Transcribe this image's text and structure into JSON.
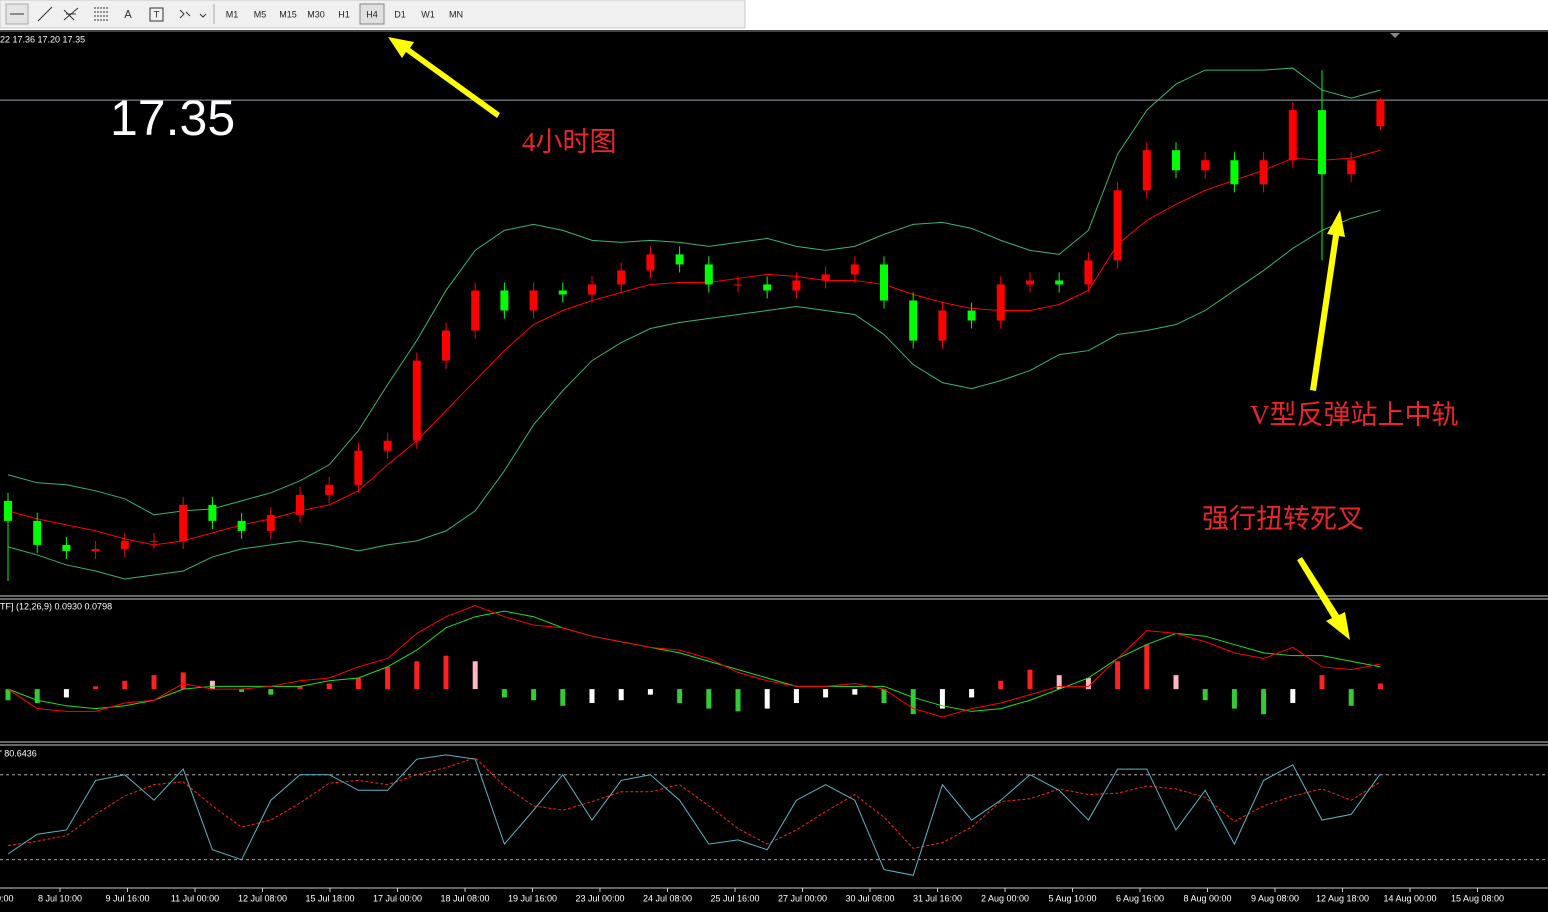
{
  "toolbar": {
    "timeframes": [
      "M1",
      "M5",
      "M15",
      "M30",
      "H1",
      "H4",
      "D1",
      "W1",
      "MN"
    ],
    "active": "H4"
  },
  "chart_data": {
    "type": "candlestick",
    "header": "22 17.36 17.20 17.35",
    "last_price": 17.35,
    "annotations": [
      "4小时图",
      "V型反弹站上中轨",
      "强行扭转死叉"
    ],
    "ylim": [
      14.88,
      17.69
    ],
    "up_color": "#ff0000",
    "down_color": "#00ff00",
    "open": [
      15.35,
      15.25,
      15.13,
      15.1,
      15.11,
      15.15,
      15.15,
      15.33,
      15.25,
      15.2,
      15.28,
      15.38,
      15.43,
      15.6,
      15.65,
      16.05,
      16.2,
      16.4,
      16.3,
      16.4,
      16.38,
      16.43,
      16.5,
      16.58,
      16.53,
      16.43,
      16.43,
      16.4,
      16.45,
      16.48,
      16.53,
      16.35,
      16.15,
      16.3,
      16.25,
      16.43,
      16.45,
      16.43,
      16.55,
      16.9,
      17.1,
      17.0,
      17.05,
      16.93,
      17.05,
      17.3,
      16.98,
      17.22
    ],
    "high": [
      15.39,
      15.29,
      15.17,
      15.15,
      15.19,
      15.19,
      15.37,
      15.37,
      15.29,
      15.32,
      15.42,
      15.47,
      15.64,
      15.69,
      16.09,
      16.24,
      16.44,
      16.44,
      16.44,
      16.44,
      16.47,
      16.54,
      16.62,
      16.62,
      16.57,
      16.47,
      16.47,
      16.49,
      16.52,
      16.57,
      16.57,
      16.39,
      16.34,
      16.34,
      16.47,
      16.49,
      16.49,
      16.59,
      16.94,
      17.14,
      17.14,
      17.09,
      17.09,
      17.09,
      17.34,
      17.5,
      17.09,
      17.36
    ],
    "low": [
      14.95,
      15.09,
      15.06,
      15.06,
      15.07,
      15.11,
      15.11,
      15.21,
      15.16,
      15.16,
      15.24,
      15.34,
      15.39,
      15.56,
      15.61,
      16.01,
      16.16,
      16.26,
      16.26,
      16.34,
      16.34,
      16.39,
      16.46,
      16.49,
      16.39,
      16.39,
      16.36,
      16.36,
      16.41,
      16.44,
      16.31,
      16.11,
      16.11,
      16.21,
      16.21,
      16.39,
      16.39,
      16.39,
      16.51,
      16.86,
      16.96,
      16.96,
      16.89,
      16.89,
      17.01,
      16.55,
      16.94,
      17.2
    ],
    "close": [
      15.25,
      15.13,
      15.1,
      15.11,
      15.15,
      15.15,
      15.33,
      15.25,
      15.2,
      15.28,
      15.38,
      15.43,
      15.6,
      15.65,
      16.05,
      16.2,
      16.4,
      16.3,
      16.4,
      16.38,
      16.43,
      16.5,
      16.58,
      16.53,
      16.43,
      16.43,
      16.4,
      16.45,
      16.48,
      16.53,
      16.35,
      16.15,
      16.3,
      16.25,
      16.43,
      16.45,
      16.43,
      16.55,
      16.9,
      17.1,
      17.0,
      17.05,
      16.93,
      17.05,
      17.3,
      16.98,
      17.05,
      17.35
    ],
    "bands": {
      "band_color": "#3cb371",
      "middle_color": "#ff0000",
      "upper": [
        15.48,
        15.44,
        15.43,
        15.4,
        15.36,
        15.28,
        15.3,
        15.31,
        15.35,
        15.39,
        15.45,
        15.53,
        15.7,
        15.93,
        16.15,
        16.4,
        16.6,
        16.7,
        16.73,
        16.7,
        16.65,
        16.64,
        16.65,
        16.64,
        16.62,
        16.64,
        16.66,
        16.62,
        16.6,
        16.62,
        16.68,
        16.73,
        16.74,
        16.71,
        16.65,
        16.6,
        16.58,
        16.7,
        17.08,
        17.3,
        17.43,
        17.5,
        17.5,
        17.5,
        17.51,
        17.4,
        17.36,
        17.4
      ],
      "middle": [
        15.3,
        15.26,
        15.23,
        15.2,
        15.16,
        15.13,
        15.15,
        15.19,
        15.23,
        15.26,
        15.3,
        15.33,
        15.4,
        15.53,
        15.65,
        15.8,
        15.95,
        16.1,
        16.23,
        16.3,
        16.35,
        16.39,
        16.43,
        16.44,
        16.44,
        16.46,
        16.48,
        16.47,
        16.45,
        16.45,
        16.43,
        16.38,
        16.34,
        16.31,
        16.3,
        16.3,
        16.33,
        16.4,
        16.63,
        16.75,
        16.83,
        16.9,
        16.95,
        17.0,
        17.06,
        17.05,
        17.06,
        17.1
      ],
      "lower": [
        15.12,
        15.08,
        15.03,
        15.0,
        14.96,
        14.98,
        15.0,
        15.07,
        15.11,
        15.13,
        15.15,
        15.13,
        15.1,
        15.13,
        15.15,
        15.2,
        15.3,
        15.5,
        15.73,
        15.9,
        16.05,
        16.14,
        16.21,
        16.24,
        16.26,
        16.28,
        16.3,
        16.32,
        16.3,
        16.28,
        16.18,
        16.03,
        15.94,
        15.91,
        15.95,
        16.0,
        16.08,
        16.1,
        16.18,
        16.2,
        16.23,
        16.3,
        16.4,
        16.5,
        16.61,
        16.7,
        16.76,
        16.8
      ]
    },
    "macd": {
      "label": "TF] (12,26,9) 0.0930 0.0798",
      "ylim": [
        -0.19,
        0.32
      ],
      "main_color": "#ff0000",
      "signal_color": "#22dd22",
      "main": [
        0,
        -0.07,
        -0.08,
        -0.08,
        -0.05,
        -0.04,
        0.02,
        0,
        0,
        0.01,
        0.03,
        0.04,
        0.08,
        0.11,
        0.2,
        0.26,
        0.3,
        0.26,
        0.23,
        0.22,
        0.19,
        0.17,
        0.15,
        0.14,
        0.11,
        0.06,
        0.03,
        0.01,
        0.01,
        0.02,
        0,
        -0.07,
        -0.1,
        -0.07,
        -0.05,
        -0.02,
        0.01,
        0.01,
        0.11,
        0.21,
        0.2,
        0.17,
        0.13,
        0.11,
        0.15,
        0.08,
        0.07,
        0.09
      ],
      "signal": [
        0,
        -0.04,
        -0.06,
        -0.07,
        -0.06,
        -0.04,
        0,
        0.01,
        0.01,
        0.01,
        0.01,
        0.03,
        0.04,
        0.08,
        0.14,
        0.22,
        0.26,
        0.28,
        0.26,
        0.22,
        0.19,
        0.17,
        0.15,
        0.13,
        0.1,
        0.07,
        0.04,
        0.01,
        0.01,
        0.01,
        0.01,
        -0.03,
        -0.06,
        -0.08,
        -0.07,
        -0.04,
        0,
        0.04,
        0.11,
        0.16,
        0.2,
        0.19,
        0.16,
        0.13,
        0.12,
        0.12,
        0.1,
        0.08
      ],
      "histogram": [
        -0.04,
        -0.05,
        -0.03,
        0.01,
        0.03,
        0.05,
        0.06,
        0.03,
        -0.01,
        -0.02,
        0.01,
        0.02,
        0.04,
        0.08,
        0.1,
        0.12,
        0.1,
        -0.03,
        -0.04,
        -0.06,
        -0.05,
        -0.04,
        -0.02,
        -0.05,
        -0.07,
        -0.08,
        -0.07,
        -0.05,
        -0.03,
        -0.02,
        -0.05,
        -0.09,
        -0.07,
        -0.03,
        0.03,
        0.07,
        0.05,
        0.04,
        0.1,
        0.16,
        0.05,
        -0.04,
        -0.07,
        -0.09,
        -0.05,
        0.05,
        -0.06,
        0.02
      ]
    },
    "stochastic": {
      "label": "' 80.6436",
      "ylim": [
        0,
        101
      ],
      "levels": [
        80,
        20
      ],
      "main_color": "#5fb4c8",
      "signal_color": "#ff2020",
      "main": [
        24,
        38,
        41,
        76,
        80,
        62,
        84,
        27,
        20,
        62,
        80,
        80,
        69,
        69,
        91,
        94,
        91,
        31,
        55,
        80,
        48,
        76,
        80,
        62,
        31,
        34,
        27,
        62,
        73,
        62,
        13,
        9,
        73,
        48,
        62,
        80,
        69,
        48,
        84,
        84,
        41,
        69,
        31,
        76,
        87,
        48,
        52,
        80.6436
      ],
      "signal": [
        30,
        33,
        37,
        52,
        65,
        73,
        75,
        58,
        43,
        48,
        60,
        74,
        76,
        73,
        80,
        85,
        92,
        72,
        58,
        55,
        61,
        68,
        68,
        73,
        58,
        42,
        31,
        41,
        54,
        66,
        50,
        28,
        32,
        43,
        61,
        63,
        70,
        66,
        67,
        72,
        70,
        64,
        47,
        58,
        65,
        70,
        62,
        75
      ]
    },
    "time_labels": [
      "0:00",
      "8 Jul 10:00",
      "9 Jul 16:00",
      "11 Jul 00:00",
      "12 Jul 08:00",
      "15 Jul 18:00",
      "17 Jul 00:00",
      "18 Jul 08:00",
      "19 Jul 16:00",
      "23 Jul 00:00",
      "24 Jul 08:00",
      "25 Jul 16:00",
      "27 Jul 00:00",
      "30 Jul 08:00",
      "31 Jul 16:00",
      "2 Aug 00:00",
      "5 Aug 10:00",
      "6 Aug 16:00",
      "8 Aug 00:00",
      "9 Aug 08:00",
      "12 Aug 18:00",
      "14 Aug 00:00",
      "15 Aug 08:00"
    ]
  }
}
